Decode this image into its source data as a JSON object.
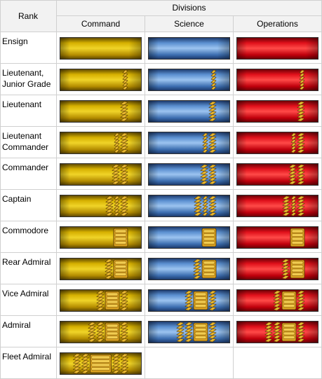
{
  "header": {
    "rank_label": "Rank",
    "divisions_label": "Divisions",
    "columns": [
      "Command",
      "Science",
      "Operations"
    ]
  },
  "colors": {
    "command": "#c9a000",
    "science": "#4a7fc0",
    "operations": "#e0101a",
    "braid": "#e8b830"
  },
  "ranks": [
    {
      "label": "Ensign",
      "insignia": [],
      "divisions": [
        "command",
        "science",
        "operations"
      ]
    },
    {
      "label": "Lieutenant, Junior Grade",
      "insignia": [
        "thin"
      ],
      "divisions": [
        "command",
        "science",
        "operations"
      ]
    },
    {
      "label": "Lieutenant",
      "insignia": [
        "thick"
      ],
      "divisions": [
        "command",
        "science",
        "operations"
      ]
    },
    {
      "label": "Lieutenant Commander",
      "insignia": [
        "thin",
        "thick"
      ],
      "divisions": [
        "command",
        "science",
        "operations"
      ]
    },
    {
      "label": "Commander",
      "insignia": [
        "thick",
        "thick"
      ],
      "divisions": [
        "command",
        "science",
        "operations"
      ]
    },
    {
      "label": "Captain",
      "insignia": [
        "thick",
        "thin",
        "thick"
      ],
      "divisions": [
        "command",
        "science",
        "operations"
      ]
    },
    {
      "label": "Commodore",
      "insignia": [
        "block"
      ],
      "divisions": [
        "command",
        "science",
        "operations"
      ]
    },
    {
      "label": "Rear Admiral",
      "insignia": [
        "thick",
        "block"
      ],
      "divisions": [
        "command",
        "science",
        "operations"
      ]
    },
    {
      "label": "Vice Admiral",
      "insignia": [
        "thick",
        "block",
        "thick"
      ],
      "divisions": [
        "command",
        "science",
        "operations"
      ]
    },
    {
      "label": "Admiral",
      "insignia": [
        "thick",
        "thick",
        "block",
        "thick"
      ],
      "divisions": [
        "command",
        "science",
        "operations"
      ]
    },
    {
      "label": "Fleet Admiral",
      "insignia": [
        "thick",
        "thick",
        "blockwide",
        "thick",
        "thick"
      ],
      "divisions": [
        "command"
      ]
    }
  ]
}
